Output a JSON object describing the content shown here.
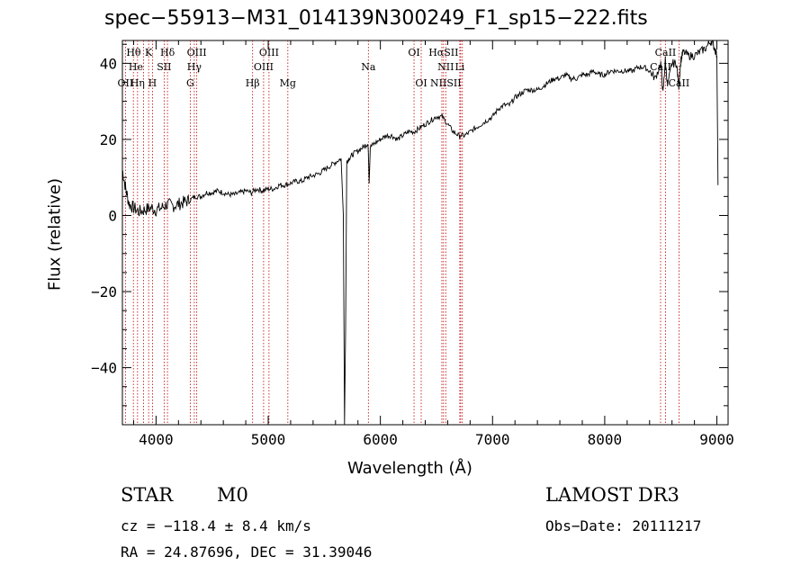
{
  "chart_data": {
    "type": "line",
    "title": "spec−55913−M31_014139N300249_F1_sp15−222.fits",
    "xlabel": "Wavelength (Å)",
    "ylabel": "Flux (relative)",
    "xlim": [
      3700,
      9100
    ],
    "ylim": [
      -55,
      46
    ],
    "xticks": [
      4000,
      5000,
      6000,
      7000,
      8000,
      9000
    ],
    "yticks": [
      -40,
      -20,
      0,
      20,
      40
    ],
    "tick_labels_x": [
      "4000",
      "5000",
      "6000",
      "7000",
      "8000",
      "9000"
    ],
    "tick_labels_y": [
      "−40",
      "−20",
      "0",
      "20",
      "40"
    ],
    "grid": false,
    "series": [
      {
        "name": "spectrum",
        "x": [
          3700,
          3730,
          3760,
          3800,
          3850,
          3900,
          3950,
          4000,
          4050,
          4100,
          4150,
          4200,
          4250,
          4300,
          4350,
          4400,
          4450,
          4500,
          4550,
          4600,
          4650,
          4700,
          4750,
          4800,
          4850,
          4900,
          4950,
          5000,
          5050,
          5100,
          5150,
          5200,
          5250,
          5300,
          5350,
          5400,
          5450,
          5500,
          5550,
          5600,
          5650,
          5670,
          5680,
          5690,
          5700,
          5720,
          5750,
          5800,
          5850,
          5890,
          5900,
          5910,
          5950,
          6000,
          6050,
          6100,
          6150,
          6200,
          6250,
          6300,
          6350,
          6400,
          6450,
          6500,
          6550,
          6600,
          6650,
          6700,
          6750,
          6800,
          6850,
          6900,
          6950,
          7000,
          7050,
          7100,
          7150,
          7200,
          7250,
          7300,
          7350,
          7400,
          7450,
          7500,
          7550,
          7600,
          7650,
          7700,
          7750,
          7800,
          7850,
          7900,
          7950,
          8000,
          8050,
          8100,
          8150,
          8200,
          8250,
          8300,
          8350,
          8400,
          8450,
          8500,
          8520,
          8540,
          8560,
          8600,
          8640,
          8660,
          8680,
          8700,
          8750,
          8800,
          8850,
          8900,
          8950,
          8980,
          9000,
          9010
        ],
        "y": [
          12,
          7,
          3,
          2,
          1,
          1.5,
          2,
          1.5,
          2,
          3,
          2.5,
          3,
          3.5,
          4,
          5,
          5,
          6,
          6,
          6.5,
          6,
          5.5,
          5.5,
          6,
          6.5,
          6,
          7,
          6.5,
          7,
          7,
          8,
          8,
          8.5,
          9,
          9,
          10,
          10.5,
          11,
          12,
          13,
          14,
          15,
          0,
          -55,
          -30,
          14,
          15,
          16,
          17,
          18,
          19,
          9,
          18,
          19,
          20,
          21,
          21,
          20,
          21,
          22,
          22,
          23,
          24,
          25,
          26,
          26,
          24,
          22,
          21,
          21,
          22,
          23,
          24,
          25,
          26,
          28,
          29,
          29,
          31,
          32,
          33,
          33,
          33,
          34,
          35,
          36,
          36,
          37,
          36,
          36,
          37,
          37,
          38,
          37,
          37,
          38,
          38,
          38,
          38,
          38,
          39,
          39,
          38,
          36,
          40,
          32,
          41,
          34,
          40,
          40,
          34,
          41,
          43,
          42,
          42,
          43,
          44,
          46,
          44,
          42,
          8
        ]
      }
    ],
    "lines": [
      {
        "name": "Hθ",
        "x": 3798
      },
      {
        "name": "Hη",
        "x": 3835
      },
      {
        "name": "OII",
        "x": 3727
      },
      {
        "name": "He",
        "x": 3889
      },
      {
        "name": "K",
        "x": 3934
      },
      {
        "name": "H",
        "x": 3968
      },
      {
        "name": "SII",
        "x": 4072
      },
      {
        "name": "Hδ",
        "x": 4102
      },
      {
        "name": "G",
        "x": 4305
      },
      {
        "name": "Hγ",
        "x": 4341
      },
      {
        "name": "OIII",
        "x": 4363
      },
      {
        "name": "Hβ",
        "x": 4861
      },
      {
        "name": "OIII",
        "x": 4959
      },
      {
        "name": "OIII",
        "x": 5007
      },
      {
        "name": "Mg",
        "x": 5175
      },
      {
        "name": "Na",
        "x": 5893
      },
      {
        "name": "OI",
        "x": 6300
      },
      {
        "name": "OI",
        "x": 6364
      },
      {
        "name": "NII",
        "x": 6548
      },
      {
        "name": "Hα",
        "x": 6563
      },
      {
        "name": "NII",
        "x": 6583
      },
      {
        "name": "Li",
        "x": 6708
      },
      {
        "name": "SII",
        "x": 6716
      },
      {
        "name": "SII",
        "x": 6731
      },
      {
        "name": "CaII",
        "x": 8498
      },
      {
        "name": "CaII",
        "x": 8542
      },
      {
        "name": "CaII",
        "x": 8662
      }
    ],
    "line_labels": [
      {
        "text": "Hθ",
        "x": 3800,
        "row": 1
      },
      {
        "text": "K",
        "x": 3934,
        "row": 1
      },
      {
        "text": "Hδ",
        "x": 4102,
        "row": 1
      },
      {
        "text": "OIII",
        "x": 4363,
        "row": 1
      },
      {
        "text": "OIII",
        "x": 5007,
        "row": 1
      },
      {
        "text": "OI",
        "x": 6300,
        "row": 1
      },
      {
        "text": "HαSII",
        "x": 6563,
        "row": 1
      },
      {
        "text": "CaII",
        "x": 8542,
        "row": 1
      },
      {
        "text": "He",
        "x": 3820,
        "row": 2
      },
      {
        "text": "SII",
        "x": 4072,
        "row": 2
      },
      {
        "text": "Hγ",
        "x": 4341,
        "row": 2
      },
      {
        "text": "OIII",
        "x": 4959,
        "row": 2
      },
      {
        "text": "Na",
        "x": 5893,
        "row": 2
      },
      {
        "text": "NII",
        "x": 6583,
        "row": 2
      },
      {
        "text": "Li",
        "x": 6708,
        "row": 2
      },
      {
        "text": "CaII",
        "x": 8498,
        "row": 2
      },
      {
        "text": "OII",
        "x": 3727,
        "row": 3
      },
      {
        "text": "Hη",
        "x": 3835,
        "row": 3
      },
      {
        "text": "H",
        "x": 3968,
        "row": 3
      },
      {
        "text": "G",
        "x": 4305,
        "row": 3
      },
      {
        "text": "Hβ",
        "x": 4861,
        "row": 3
      },
      {
        "text": "Mg",
        "x": 5175,
        "row": 3
      },
      {
        "text": "OI",
        "x": 6364,
        "row": 3
      },
      {
        "text": "NIISII",
        "x": 6583,
        "row": 3
      },
      {
        "text": "CaII",
        "x": 8662,
        "row": 3
      }
    ]
  },
  "info": {
    "class": "STAR",
    "subclass": "M0",
    "survey": "LAMOST DR3",
    "cz": "cz = −118.4 ± 8.4 km/s",
    "obs_date": "Obs−Date: 20111217",
    "radec": "RA =  24.87696, DEC =  31.39046"
  },
  "colors": {
    "spectrum": "#000000",
    "line_marker": "#c00000",
    "axis": "#000000"
  }
}
